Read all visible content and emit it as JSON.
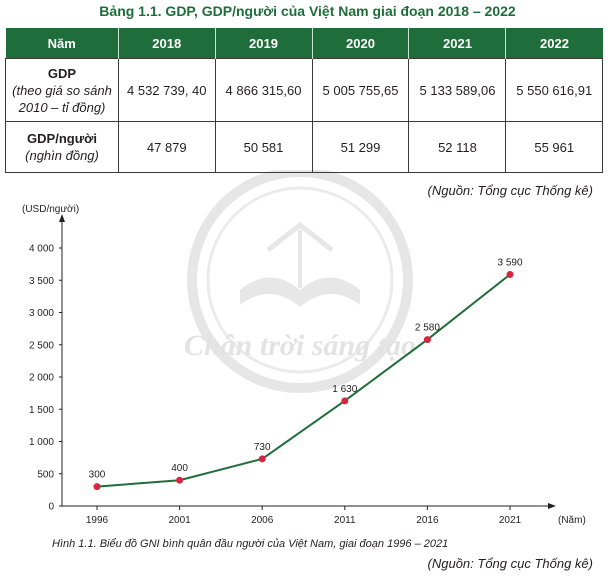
{
  "table_title": "Bảng 1.1. GDP, GDP/người của Việt Nam giai đoạn 2018 – 2022",
  "table": {
    "header": [
      "Năm",
      "2018",
      "2019",
      "2020",
      "2021",
      "2022"
    ],
    "rows": [
      {
        "label": "GDP",
        "sublabel": "(theo giá so sánh 2010 – tỉ đồng)",
        "values": [
          "4 532 739, 40",
          "4 866 315,60",
          "5 005 755,65",
          "5 133 589,06",
          "5 550 616,91"
        ]
      },
      {
        "label": "GDP/người",
        "sublabel": "(nghìn đồng)",
        "values": [
          "47 879",
          "50 581",
          "51 299",
          "52 118",
          "55 961"
        ]
      }
    ]
  },
  "source_text": "(Nguồn: Tổng cục Thống kê)",
  "watermark_text": "Chân trời sáng tạo",
  "chart_data": {
    "type": "line",
    "x": [
      "1996",
      "2001",
      "2006",
      "2011",
      "2016",
      "2021"
    ],
    "values": [
      300,
      400,
      730,
      1630,
      2580,
      3590
    ],
    "data_labels": [
      "300",
      "400",
      "730",
      "1 630",
      "2 580",
      "3 590"
    ],
    "y_ticks": [
      "0",
      "500",
      "1 000",
      "1 500",
      "2 000",
      "2 500",
      "3 000",
      "3 500",
      "4 000"
    ],
    "ylim": [
      0,
      4000
    ],
    "ylabel": "(USD/người)",
    "xlabel": "(Năm)",
    "grid": false,
    "line_color": "#1f6d3a",
    "point_color": "#d7263d"
  },
  "caption": "Hình 1.1. Biểu đồ GNI bình quân đầu người của Việt Nam, giai đoạn 1996 – 2021"
}
